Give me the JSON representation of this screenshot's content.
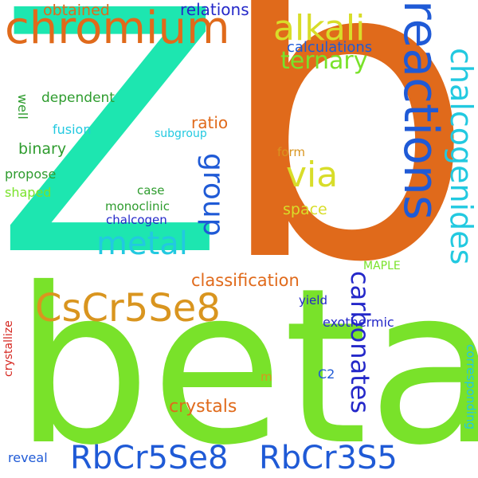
{
  "words": {
    "zb_z": "Z",
    "zb_b": "b",
    "beta": "beta",
    "reactions": "reactions",
    "chromium": "chromium",
    "CsCr5Se8": "CsCr5Se8",
    "RbCr5Se8": "RbCr5Se8",
    "RbCr3S5": "RbCr3S5",
    "chalcogenides": "chalcogenides",
    "alkali": "alkali",
    "group": "group",
    "metal": "metal",
    "ternary": "ternary",
    "via": "via",
    "carbonates": "carbonates",
    "obtained": "obtained",
    "relations": "relations",
    "calculations": "calculations",
    "classification": "classification",
    "binary": "binary",
    "crystals": "crystals",
    "ratio": "ratio",
    "space": "space",
    "dependent": "dependent",
    "fusion": "fusion",
    "subgroup": "subgroup",
    "form": "form",
    "well": "well",
    "propose": "propose",
    "shaped": "shaped",
    "case": "case",
    "monoclinic": "monoclinic",
    "chalcogen": "chalcogen",
    "MAPLE": "MAPLE",
    "yield": "yield",
    "exothermic": "exothermic",
    "crystallize": "crystallize",
    "corresponding": "corresponding",
    "C2": "C2",
    "m": "m",
    "reveal": "reveal"
  },
  "colors": {
    "teal": "#1de6b0",
    "orange": "#e06a1b",
    "green": "#79e22a",
    "blue": "#1f5ad6",
    "cyan": "#22c9e0",
    "yellow": "#d8dd29",
    "amber": "#d9951f",
    "navy": "#2428c9",
    "red": "#d5261f"
  }
}
